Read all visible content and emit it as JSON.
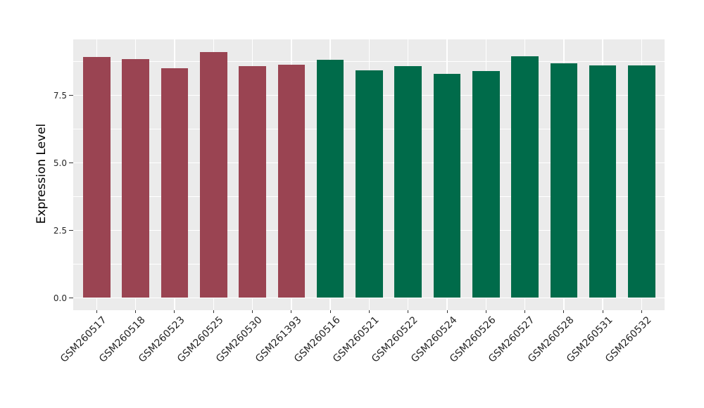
{
  "chart_data": {
    "type": "bar",
    "title": "",
    "xlabel": "",
    "ylabel": "Expression Level",
    "categories": [
      "GSM260517",
      "GSM260518",
      "GSM260523",
      "GSM260525",
      "GSM260530",
      "GSM261393",
      "GSM260516",
      "GSM260521",
      "GSM260522",
      "GSM260524",
      "GSM260526",
      "GSM260527",
      "GSM260528",
      "GSM260531",
      "GSM260532"
    ],
    "values": [
      8.93,
      8.85,
      8.5,
      9.1,
      8.58,
      8.62,
      8.81,
      8.43,
      8.58,
      8.29,
      8.41,
      8.95,
      8.68,
      8.6,
      8.6
    ],
    "groups": [
      "group1",
      "group1",
      "group1",
      "group1",
      "group1",
      "group1",
      "group2",
      "group2",
      "group2",
      "group2",
      "group2",
      "group2",
      "group2",
      "group2",
      "group2"
    ],
    "group_colors": {
      "group1": "#9A4452",
      "group2": "#006B4A"
    },
    "ytick_labels": [
      "0.0",
      "2.5",
      "5.0",
      "7.5"
    ],
    "ytick_values": [
      0,
      2.5,
      5,
      7.5
    ],
    "minor_gridline_values": [
      1.25,
      3.75,
      6.25,
      8.75
    ],
    "ylim": [
      0,
      9.57
    ],
    "legend": "none",
    "grid": "on",
    "plot_background": "#EBEBEB",
    "gridline_color": "#FFFFFF",
    "tick_color": "#333333",
    "label_color": "#262626"
  }
}
